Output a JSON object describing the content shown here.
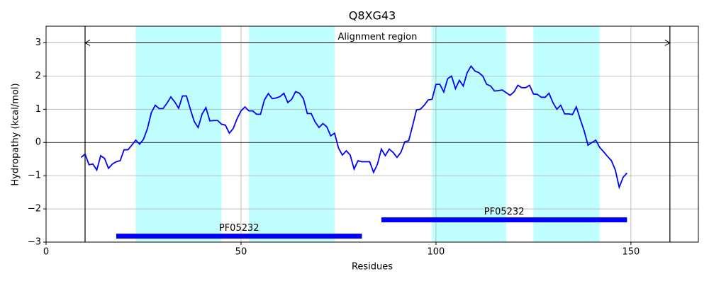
{
  "chart_data": {
    "type": "line",
    "title": "Q8XG43",
    "x_label": "Residues",
    "y_label": "Hydropathy (kcal/mol)",
    "x": [
      9,
      10,
      11,
      12,
      13,
      14,
      15,
      16,
      17,
      18,
      19,
      20,
      21,
      22,
      23,
      24,
      25,
      26,
      27,
      28,
      29,
      30,
      31,
      32,
      33,
      34,
      35,
      36,
      37,
      38,
      39,
      40,
      41,
      42,
      43,
      44,
      45,
      46,
      47,
      48,
      49,
      50,
      51,
      52,
      53,
      54,
      55,
      56,
      57,
      58,
      59,
      60,
      61,
      62,
      63,
      64,
      65,
      66,
      67,
      68,
      69,
      70,
      71,
      72,
      73,
      74,
      75,
      76,
      77,
      78,
      79,
      80,
      81,
      82,
      83,
      84,
      85,
      86,
      87,
      88,
      89,
      90,
      91,
      92,
      93,
      94,
      95,
      96,
      97,
      98,
      99,
      100,
      101,
      102,
      103,
      104,
      105,
      106,
      107,
      108,
      109,
      110,
      111,
      112,
      113,
      114,
      115,
      116,
      117,
      118,
      119,
      120,
      121,
      122,
      123,
      124,
      125,
      126,
      127,
      128,
      129,
      130,
      131,
      132,
      133,
      134,
      135,
      136,
      137,
      138,
      139,
      140,
      141,
      142,
      143,
      144,
      145,
      146,
      147,
      148,
      149
    ],
    "series": [
      {
        "color": "#0000ff",
        "values": [
          -0.45,
          -0.35,
          -0.67,
          -0.65,
          -0.83,
          -0.4,
          -0.48,
          -0.78,
          -0.65,
          -0.58,
          -0.55,
          -0.22,
          -0.22,
          -0.08,
          0.07,
          -0.05,
          0.1,
          0.42,
          0.9,
          1.12,
          1.02,
          1.02,
          1.18,
          1.37,
          1.22,
          1.03,
          1.4,
          1.4,
          1.0,
          0.63,
          0.45,
          0.85,
          1.05,
          0.65,
          0.66,
          0.66,
          0.55,
          0.52,
          0.28,
          0.42,
          0.72,
          0.95,
          1.07,
          0.95,
          0.95,
          0.85,
          0.85,
          1.28,
          1.47,
          1.32,
          1.34,
          1.38,
          1.48,
          1.2,
          1.3,
          1.53,
          1.48,
          1.32,
          0.87,
          0.87,
          0.62,
          0.45,
          0.57,
          0.47,
          0.2,
          0.28,
          -0.17,
          -0.38,
          -0.25,
          -0.38,
          -0.8,
          -0.55,
          -0.58,
          -0.58,
          -0.58,
          -0.9,
          -0.65,
          -0.2,
          -0.4,
          -0.2,
          -0.3,
          -0.45,
          -0.3,
          0.02,
          0.05,
          0.5,
          0.98,
          1.0,
          1.12,
          1.28,
          1.3,
          1.75,
          1.75,
          1.52,
          1.92,
          2.0,
          1.62,
          1.87,
          1.7,
          2.1,
          2.3,
          2.15,
          2.1,
          2.0,
          1.75,
          1.7,
          1.55,
          1.56,
          1.58,
          1.5,
          1.42,
          1.52,
          1.72,
          1.65,
          1.65,
          1.72,
          1.46,
          1.45,
          1.36,
          1.36,
          1.48,
          1.2,
          1.0,
          1.12,
          0.86,
          0.86,
          0.84,
          1.07,
          0.7,
          0.35,
          -0.08,
          0.0,
          0.07,
          -0.15,
          -0.28,
          -0.42,
          -0.55,
          -0.83,
          -1.35,
          -1.05,
          -0.92
        ]
      }
    ],
    "xlim": [
      0,
      167.3
    ],
    "ylim": [
      -3,
      3.5
    ],
    "xticks": [
      0,
      50,
      100,
      150
    ],
    "yticks": [
      {
        "value": -3,
        "label": "−3"
      },
      {
        "value": -2,
        "label": "−2"
      },
      {
        "value": -1,
        "label": "−1"
      },
      0,
      1,
      2,
      3
    ],
    "grid": true,
    "hline": 0,
    "regions": [
      [
        23,
        45
      ],
      [
        52,
        74
      ],
      [
        99,
        118
      ],
      [
        125,
        142
      ]
    ],
    "region_color": "#c0ffff",
    "alignment": {
      "label": "Alignment region",
      "start": 10,
      "end": 160,
      "y": 3
    },
    "domains": [
      {
        "label": "PF05232",
        "start": 18,
        "end": 81,
        "y": -2.82
      },
      {
        "label": "PF05232",
        "start": 86,
        "end": 149,
        "y": -2.33
      }
    ],
    "domain_color": "#0000ff"
  }
}
